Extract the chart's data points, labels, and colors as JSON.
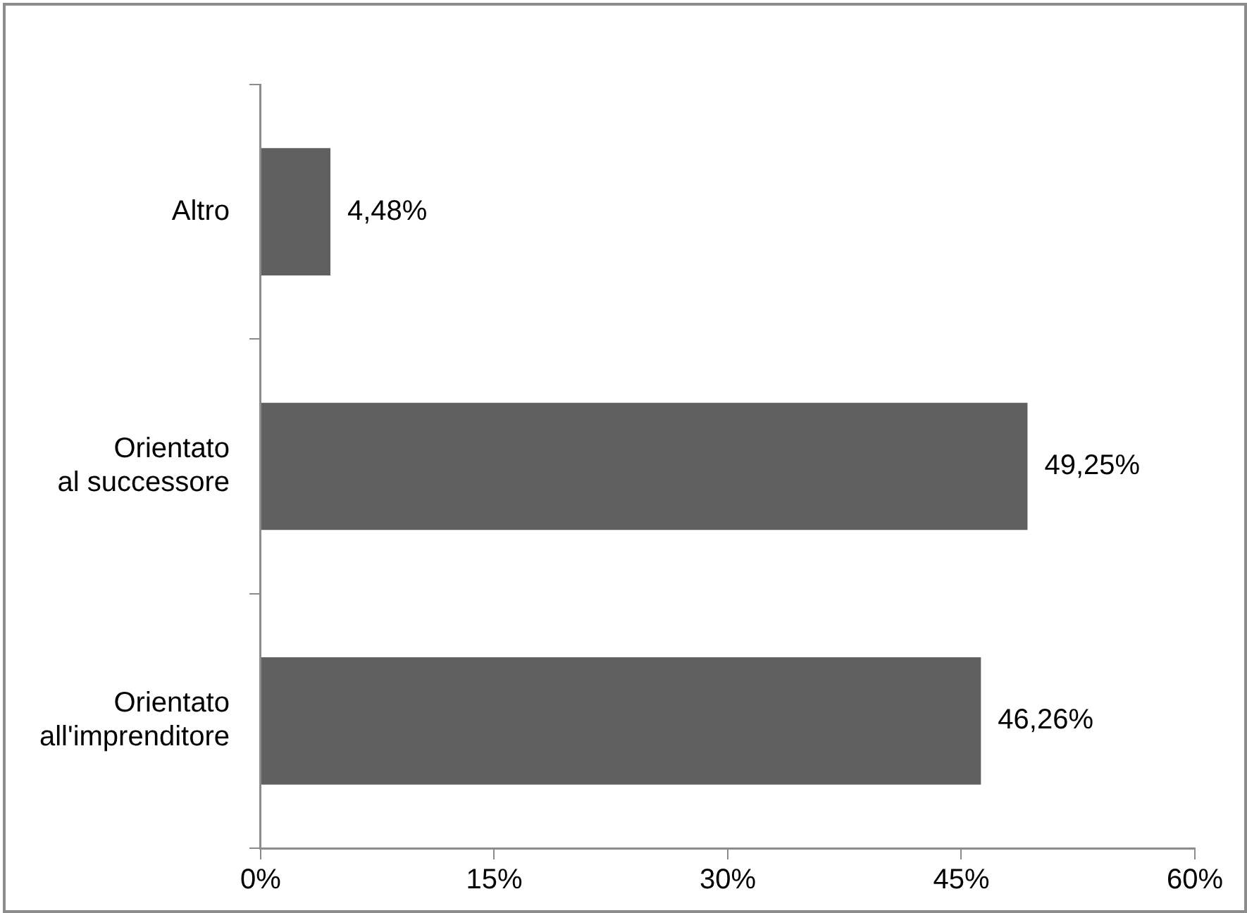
{
  "chart_data": {
    "type": "bar",
    "orientation": "horizontal",
    "categories": [
      "Altro",
      "Orientato al successore",
      "Orientato all'imprenditore"
    ],
    "values": [
      4.48,
      49.25,
      46.26
    ],
    "color": "#606060",
    "value_labels": [
      "4,48%",
      "49,25%",
      "46,26%"
    ],
    "xlim": [
      0,
      60
    ],
    "xticks": [
      {
        "value": 0,
        "label": "0%"
      },
      {
        "value": 15,
        "label": "15%"
      },
      {
        "value": 30,
        "label": "30%"
      },
      {
        "value": 45,
        "label": "45%"
      },
      {
        "value": 60,
        "label": "60%"
      }
    ],
    "grid": false,
    "legend": false
  }
}
